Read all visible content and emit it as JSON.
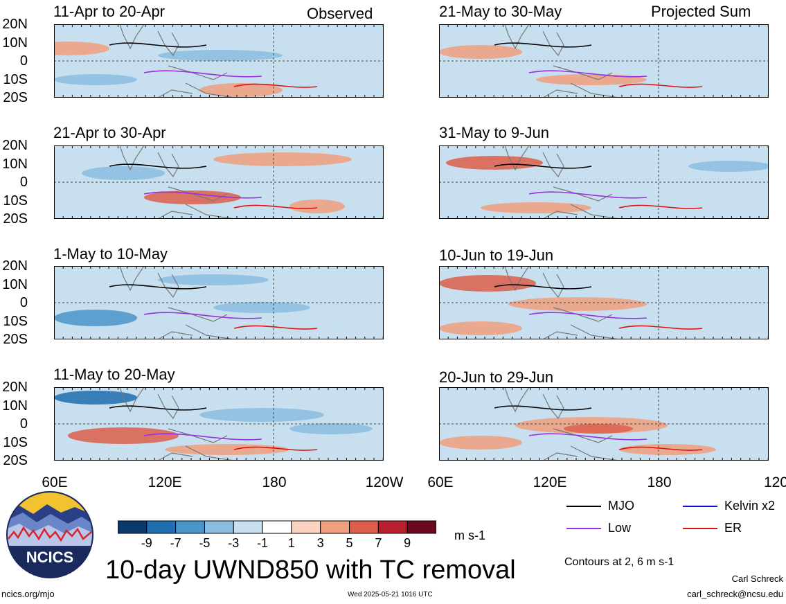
{
  "header": {
    "left_tag": "Observed",
    "right_tag": "Projected Sum"
  },
  "panels_left": [
    {
      "title": "11-Apr to 20-Apr"
    },
    {
      "title": "21-Apr to 30-Apr"
    },
    {
      "title": "1-May to 10-May"
    },
    {
      "title": "11-May to 20-May"
    }
  ],
  "panels_right": [
    {
      "title": "21-May to 30-May"
    },
    {
      "title": "31-May to 9-Jun"
    },
    {
      "title": "10-Jun to 19-Jun"
    },
    {
      "title": "20-Jun to 29-Jun"
    }
  ],
  "lat_labels": [
    "20N",
    "10N",
    "0",
    "10S",
    "20S"
  ],
  "lon_labels": [
    "60E",
    "120E",
    "180",
    "120W"
  ],
  "colorbar": {
    "labels": [
      "-9",
      "-7",
      "-5",
      "-3",
      "-1",
      "1",
      "3",
      "5",
      "7",
      "9"
    ],
    "colors": [
      "#0a3a6b",
      "#1f6fb0",
      "#4a95c9",
      "#8bbde0",
      "#c7dfef",
      "#ffffff",
      "#fbd3c0",
      "#f0a07e",
      "#dd5f4b",
      "#b8202e",
      "#6b0a1e"
    ],
    "units": "m s-1"
  },
  "legend": {
    "items": [
      {
        "label": "MJO",
        "color": "#000000"
      },
      {
        "label": "Kelvin x2",
        "color": "#1010e0"
      },
      {
        "label": "Low",
        "color": "#9a30e0"
      },
      {
        "label": "ER",
        "color": "#e01010"
      }
    ],
    "contour_note": "Contours at 2, 6 m s-1"
  },
  "logo": {
    "text": "NCICS"
  },
  "main_title": "10-day UWND850 with TC removal",
  "footer": {
    "url": "ncics.org/mjo",
    "timestamp": "Wed 2025-05-21 1016 UTC",
    "author": "Carl Schreck",
    "email": "carl_schreck@ncsu.edu"
  }
}
